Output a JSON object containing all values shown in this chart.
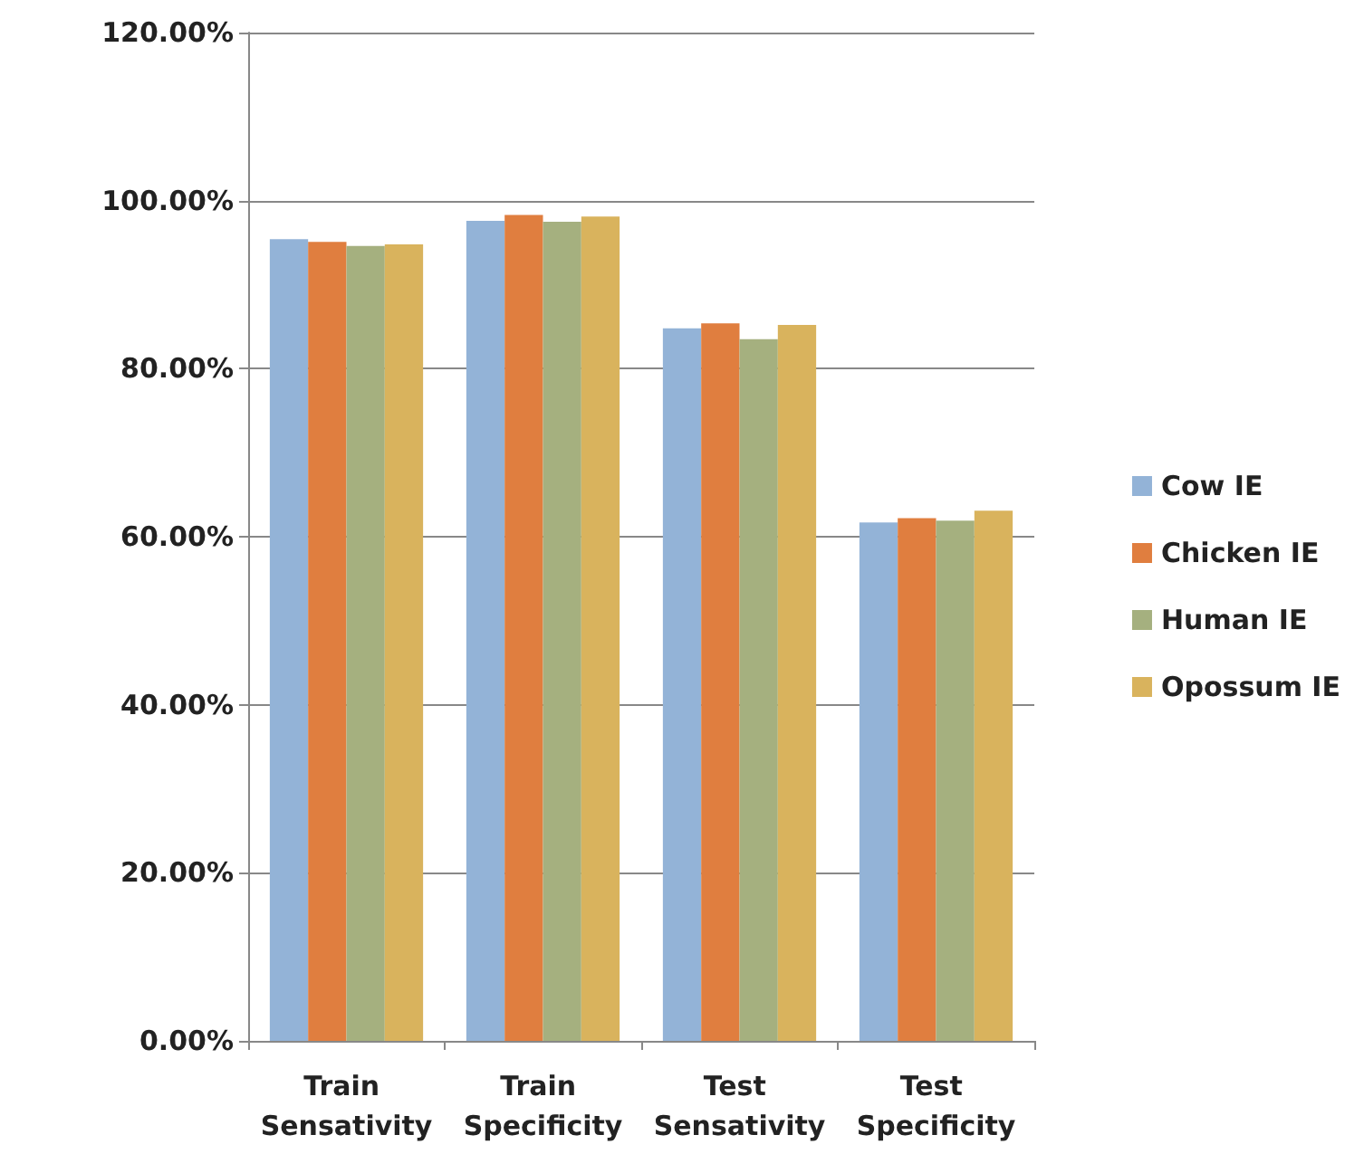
{
  "chart_data": {
    "type": "bar",
    "categories": [
      "Train Sensativity",
      "Train Specificity",
      "Test Sensativity",
      "Test Specificity"
    ],
    "series": [
      {
        "name": "Cow IE",
        "color": "#93b3d7",
        "values": [
          95.4,
          97.6,
          84.8,
          61.7
        ]
      },
      {
        "name": "Chicken IE",
        "color": "#e07e3f",
        "values": [
          95.1,
          98.3,
          85.4,
          62.2
        ]
      },
      {
        "name": "Human IE",
        "color": "#a5b07f",
        "values": [
          94.6,
          97.5,
          83.5,
          61.9
        ]
      },
      {
        "name": "Opossum IE",
        "color": "#d9b35d",
        "values": [
          94.8,
          98.1,
          85.2,
          63.1
        ]
      }
    ],
    "ylim": [
      0,
      120
    ],
    "yticks": [
      {
        "value": 0,
        "label": "0.00%"
      },
      {
        "value": 20,
        "label": "20.00%"
      },
      {
        "value": 40,
        "label": "40.00%"
      },
      {
        "value": 60,
        "label": "60.00%"
      },
      {
        "value": 80,
        "label": "80.00%"
      },
      {
        "value": 100,
        "label": "100.00%"
      },
      {
        "value": 120,
        "label": "120.00%"
      }
    ],
    "grid": "y",
    "legend": "right"
  }
}
